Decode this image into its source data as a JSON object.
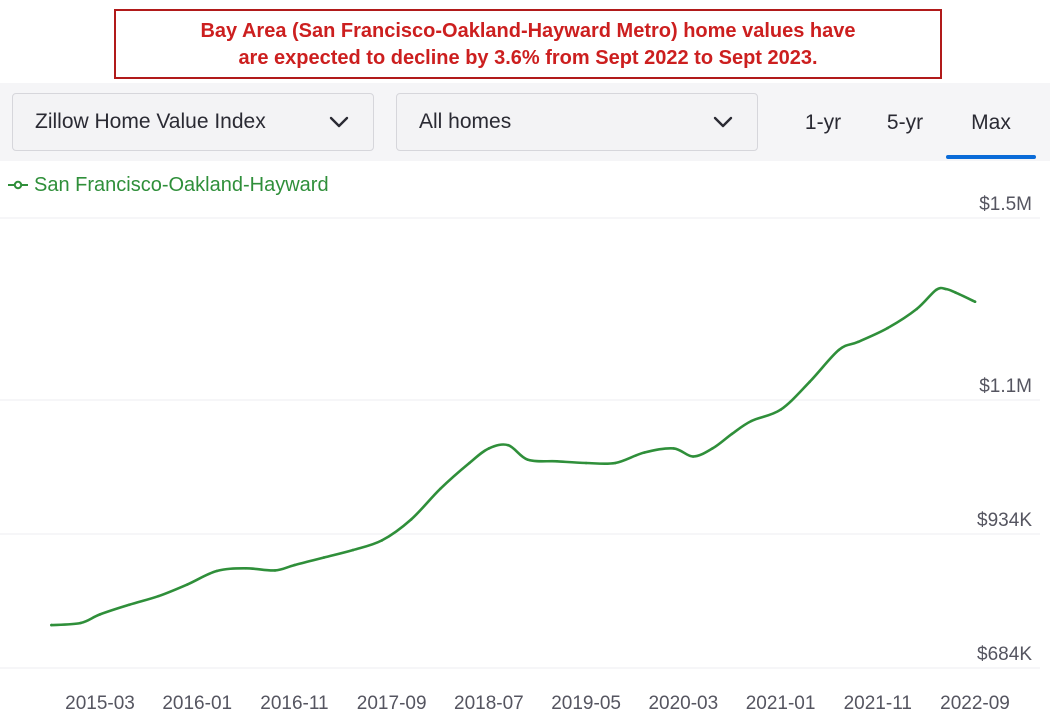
{
  "banner": {
    "line1": "Bay Area (San Francisco-Oakland-Hayward Metro) home values have",
    "line2": "are expected to decline by 3.6% from Sept 2022 to Sept 2023."
  },
  "controls": {
    "metric_select": "Zillow Home Value Index",
    "home_type_select": "All homes",
    "ranges": [
      "1-yr",
      "5-yr",
      "Max"
    ],
    "active_range": "Max"
  },
  "colors": {
    "series": "#2f8f3a",
    "banner_red": "#cc1f1f",
    "active_tab": "#0a6bd8",
    "grid": "#ececf0",
    "axis_text": "#555560"
  },
  "chart_data": {
    "type": "line",
    "title": "",
    "xlabel": "",
    "ylabel": "",
    "legend_position": "top-left",
    "grid": true,
    "ylim": [
      684000,
      1500000
    ],
    "y_ticks": [
      {
        "value": 684000,
        "label": "$684K"
      },
      {
        "value": 934000,
        "label": "$934K"
      },
      {
        "value": 1100000,
        "label": "$1.1M"
      },
      {
        "value": 1500000,
        "label": "$1.5M"
      }
    ],
    "x_tick_labels": [
      "2015-03",
      "2016-01",
      "2016-11",
      "2017-09",
      "2018-07",
      "2019-05",
      "2020-03",
      "2021-01",
      "2021-11",
      "2022-09"
    ],
    "series": [
      {
        "name": "San Francisco-Oakland-Hayward",
        "x": [
          "2014-10",
          "2015-01",
          "2015-03",
          "2015-06",
          "2015-09",
          "2015-12",
          "2016-03",
          "2016-06",
          "2016-09",
          "2016-11",
          "2017-02",
          "2017-05",
          "2017-08",
          "2017-11",
          "2018-02",
          "2018-05",
          "2018-07",
          "2018-09",
          "2018-11",
          "2019-02",
          "2019-05",
          "2019-08",
          "2019-11",
          "2020-02",
          "2020-04",
          "2020-06",
          "2020-08",
          "2020-10",
          "2021-01",
          "2021-04",
          "2021-07",
          "2021-09",
          "2021-12",
          "2022-03",
          "2022-05",
          "2022-06",
          "2022-07",
          "2022-09"
        ],
        "values": [
          764000,
          768000,
          784000,
          802000,
          818000,
          840000,
          865000,
          870000,
          866000,
          876000,
          890000,
          904000,
          922000,
          952000,
          990000,
          1022000,
          1040000,
          1044000,
          1026000,
          1024000,
          1022000,
          1022000,
          1035000,
          1040000,
          1030000,
          1040000,
          1058000,
          1074000,
          1088000,
          1140000,
          1210000,
          1228000,
          1258000,
          1300000,
          1342000,
          1344000,
          1336000,
          1316000
        ]
      }
    ]
  }
}
